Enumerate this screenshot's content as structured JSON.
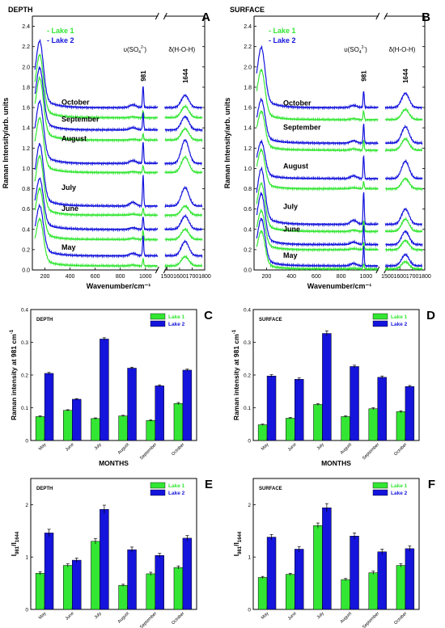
{
  "colors": {
    "lake1": "#33e633",
    "lake2": "#1414dc",
    "axis": "#000000"
  },
  "chart_data": [
    {
      "panel": "A",
      "type": "line",
      "title": "DEPTH",
      "xlabel": "Wavenumber/cm⁻¹",
      "ylabel": "Raman Intensity/arb. units",
      "xlim": [
        100,
        1800
      ],
      "axis_break": [
        1100,
        1480
      ],
      "ylim": [
        0,
        2.5
      ],
      "xticks": [
        200,
        400,
        600,
        800,
        1000,
        1500,
        1600,
        1700,
        1800
      ],
      "yticks": [
        0.0,
        0.2,
        0.4,
        0.6,
        0.8,
        1.0,
        1.2,
        1.4,
        1.6,
        1.8,
        2.0,
        2.2,
        2.4
      ],
      "legend": [
        "Lake 1",
        "Lake 2"
      ],
      "legend_position": "top-left",
      "band_labels": [
        {
          "text": "981",
          "x": 981
        },
        {
          "text": "1644",
          "x": 1644
        }
      ],
      "sulfate_label": "υ(SO",
      "sulfate_sub": "4",
      "sulfate_sup": "2-",
      "sulfate_close": ")",
      "water_label": "δ(H-O-H)",
      "month_labels": [
        {
          "text": "October",
          "y": 1.63
        },
        {
          "text": "September",
          "y": 1.46
        },
        {
          "text": "August",
          "y": 1.27
        },
        {
          "text": "July",
          "y": 0.79
        },
        {
          "text": "June",
          "y": 0.58
        },
        {
          "text": "May",
          "y": 0.2
        }
      ],
      "series": [
        {
          "lake": 2,
          "month": "October",
          "baseline": 1.6,
          "peak": 2.32,
          "p981": 0.22,
          "p1644": 0.12
        },
        {
          "lake": 1,
          "month": "October",
          "baseline": 1.5,
          "peak": 2.18,
          "p981": 0.07,
          "p1644": 0.11
        },
        {
          "lake": 2,
          "month": "September",
          "baseline": 1.38,
          "peak": 2.05,
          "p981": 0.17,
          "p1644": 0.13
        },
        {
          "lake": 1,
          "month": "September",
          "baseline": 1.28,
          "peak": 1.95,
          "p981": 0.06,
          "p1644": 0.11
        },
        {
          "lake": 2,
          "month": "August",
          "baseline": 1.05,
          "peak": 1.72,
          "p981": 0.22,
          "p1644": 0.23
        },
        {
          "lake": 1,
          "month": "August",
          "baseline": 0.96,
          "peak": 1.55,
          "p981": 0.07,
          "p1644": 0.15
        },
        {
          "lake": 2,
          "month": "July",
          "baseline": 0.63,
          "peak": 1.3,
          "p981": 0.31,
          "p1644": 0.18
        },
        {
          "lake": 1,
          "month": "July",
          "baseline": 0.54,
          "peak": 1.18,
          "p981": 0.07,
          "p1644": 0.09
        },
        {
          "lake": 2,
          "month": "June",
          "baseline": 0.4,
          "peak": 0.95,
          "p981": 0.13,
          "p1644": 0.13
        },
        {
          "lake": 1,
          "month": "June",
          "baseline": 0.3,
          "peak": 0.85,
          "p981": 0.09,
          "p1644": 0.1
        },
        {
          "lake": 2,
          "month": "May",
          "baseline": 0.14,
          "peak": 0.68,
          "p981": 0.2,
          "p1644": 0.14
        },
        {
          "lake": 1,
          "month": "May",
          "baseline": 0.04,
          "peak": 0.55,
          "p981": 0.07,
          "p1644": 0.09
        }
      ]
    },
    {
      "panel": "B",
      "type": "line",
      "title": "SURFACE",
      "xlabel": "Wavenumber/cm⁻¹",
      "ylabel": "Raman Intensity/arb. units",
      "xlim": [
        100,
        1800
      ],
      "axis_break": [
        1100,
        1480
      ],
      "ylim": [
        0,
        2.5
      ],
      "xticks": [
        200,
        400,
        600,
        800,
        1000,
        1500,
        1600,
        1700,
        1800
      ],
      "yticks": [
        0.0,
        0.2,
        0.4,
        0.6,
        0.8,
        1.0,
        1.2,
        1.4,
        1.6,
        1.8,
        2.0,
        2.2,
        2.4
      ],
      "legend": [
        "Lake 1",
        "Lake 2"
      ],
      "legend_position": "top-left",
      "band_labels": [
        {
          "text": "981",
          "x": 981
        },
        {
          "text": "1644",
          "x": 1644
        }
      ],
      "sulfate_label": "υ(SO",
      "sulfate_sub": "4",
      "sulfate_sup": "2-",
      "sulfate_close": ")",
      "water_label": "δ(H-O-H)",
      "month_labels": [
        {
          "text": "October",
          "y": 1.62
        },
        {
          "text": "September",
          "y": 1.38
        },
        {
          "text": "August",
          "y": 1.0
        },
        {
          "text": "July",
          "y": 0.6
        },
        {
          "text": "June",
          "y": 0.38
        },
        {
          "text": "May",
          "y": 0.12
        }
      ],
      "series": [
        {
          "lake": 2,
          "month": "October",
          "baseline": 1.6,
          "peak": 2.25,
          "p981": 0.17,
          "p1644": 0.14
        },
        {
          "lake": 1,
          "month": "October",
          "baseline": 1.48,
          "peak": 2.02,
          "p981": 0.09,
          "p1644": 0.1
        },
        {
          "lake": 2,
          "month": "September",
          "baseline": 1.25,
          "peak": 1.72,
          "p981": 0.19,
          "p1644": 0.16
        },
        {
          "lake": 1,
          "month": "September",
          "baseline": 1.18,
          "peak": 1.6,
          "p981": 0.1,
          "p1644": 0.11
        },
        {
          "lake": 2,
          "month": "August",
          "baseline": 0.9,
          "peak": 1.3,
          "p981": 0.23,
          "p1644": 0.17
        },
        {
          "lake": 1,
          "month": "August",
          "baseline": 0.8,
          "peak": 1.22,
          "p981": 0.07,
          "p1644": 0.1
        },
        {
          "lake": 2,
          "month": "July",
          "baseline": 0.45,
          "peak": 1.05,
          "p981": 0.33,
          "p1644": 0.15
        },
        {
          "lake": 1,
          "month": "July",
          "baseline": 0.38,
          "peak": 0.9,
          "p981": 0.11,
          "p1644": 0.12
        },
        {
          "lake": 2,
          "month": "June",
          "baseline": 0.25,
          "peak": 0.8,
          "p981": 0.19,
          "p1644": 0.13
        },
        {
          "lake": 1,
          "month": "June",
          "baseline": 0.2,
          "peak": 0.62,
          "p981": 0.07,
          "p1644": 0.09
        },
        {
          "lake": 2,
          "month": "May",
          "baseline": 0.04,
          "peak": 0.55,
          "p981": 0.2,
          "p1644": 0.11
        },
        {
          "lake": 1,
          "month": "May",
          "baseline": 0.01,
          "peak": 0.42,
          "p981": 0.05,
          "p1644": 0.07
        }
      ]
    },
    {
      "panel": "C",
      "type": "bar",
      "title": "DEPTH",
      "xlabel": "MONTHS",
      "ylabel": "Raman intensity at 981 cm",
      "ylabel_sup": "-1",
      "categories": [
        "May",
        "June",
        "July",
        "August",
        "September",
        "October"
      ],
      "ylim": [
        0,
        0.4
      ],
      "yticks": [
        0,
        0.1,
        0.2,
        0.3,
        0.4
      ],
      "legend_position": "top-right",
      "series": [
        {
          "name": "Lake 1",
          "values": [
            0.073,
            0.092,
            0.067,
            0.075,
            0.061,
            0.113
          ],
          "errors": [
            0.002,
            0.002,
            0.002,
            0.002,
            0.002,
            0.003
          ]
        },
        {
          "name": "Lake 2",
          "values": [
            0.205,
            0.126,
            0.31,
            0.221,
            0.167,
            0.215
          ],
          "errors": [
            0.003,
            0.002,
            0.004,
            0.003,
            0.003,
            0.003
          ]
        }
      ]
    },
    {
      "panel": "D",
      "type": "bar",
      "title": "SURFACE",
      "xlabel": "MONTHS",
      "ylabel": "Raman intensity at 981 cm",
      "ylabel_sup": "-1",
      "categories": [
        "May",
        "June",
        "July",
        "August",
        "September",
        "October"
      ],
      "ylim": [
        0,
        0.4
      ],
      "yticks": [
        0,
        0.1,
        0.2,
        0.3,
        0.4
      ],
      "legend_position": "top-right",
      "series": [
        {
          "name": "Lake 1",
          "values": [
            0.048,
            0.068,
            0.11,
            0.073,
            0.097,
            0.088
          ],
          "errors": [
            0.002,
            0.002,
            0.003,
            0.002,
            0.003,
            0.003
          ]
        },
        {
          "name": "Lake 2",
          "values": [
            0.197,
            0.187,
            0.327,
            0.226,
            0.193,
            0.165
          ],
          "errors": [
            0.004,
            0.004,
            0.008,
            0.004,
            0.004,
            0.003
          ]
        }
      ]
    },
    {
      "panel": "E",
      "type": "bar",
      "title": "DEPTH",
      "xlabel": "MONTHS",
      "ylabel": "I",
      "ylabel_sub1": "981",
      "ylabel_mid": "/I",
      "ylabel_sub2": "1644",
      "categories": [
        "May",
        "June",
        "July",
        "August",
        "September",
        "October"
      ],
      "ylim": [
        0,
        2.5
      ],
      "yticks": [
        0,
        1,
        2
      ],
      "legend_position": "top-right",
      "series": [
        {
          "name": "Lake 1",
          "values": [
            0.69,
            0.84,
            1.3,
            0.46,
            0.68,
            0.8
          ],
          "errors": [
            0.03,
            0.03,
            0.05,
            0.02,
            0.03,
            0.03
          ]
        },
        {
          "name": "Lake 2",
          "values": [
            1.46,
            0.94,
            1.91,
            1.14,
            1.03,
            1.36
          ],
          "errors": [
            0.07,
            0.04,
            0.08,
            0.05,
            0.04,
            0.05
          ]
        }
      ]
    },
    {
      "panel": "F",
      "type": "bar",
      "title": "SURFACE",
      "xlabel": "MONTHS",
      "ylabel": "I",
      "ylabel_sub1": "981",
      "ylabel_mid": "/I",
      "ylabel_sub2": "1644",
      "categories": [
        "May",
        "June",
        "July",
        "August",
        "September",
        "October"
      ],
      "ylim": [
        0,
        2.5
      ],
      "yticks": [
        0,
        1,
        2
      ],
      "legend_position": "top-right",
      "series": [
        {
          "name": "Lake 1",
          "values": [
            0.61,
            0.67,
            1.6,
            0.57,
            0.7,
            0.84
          ],
          "errors": [
            0.02,
            0.02,
            0.05,
            0.02,
            0.03,
            0.03
          ]
        },
        {
          "name": "Lake 2",
          "values": [
            1.38,
            1.15,
            1.94,
            1.4,
            1.1,
            1.16
          ],
          "errors": [
            0.05,
            0.05,
            0.08,
            0.06,
            0.05,
            0.05
          ]
        }
      ]
    }
  ]
}
